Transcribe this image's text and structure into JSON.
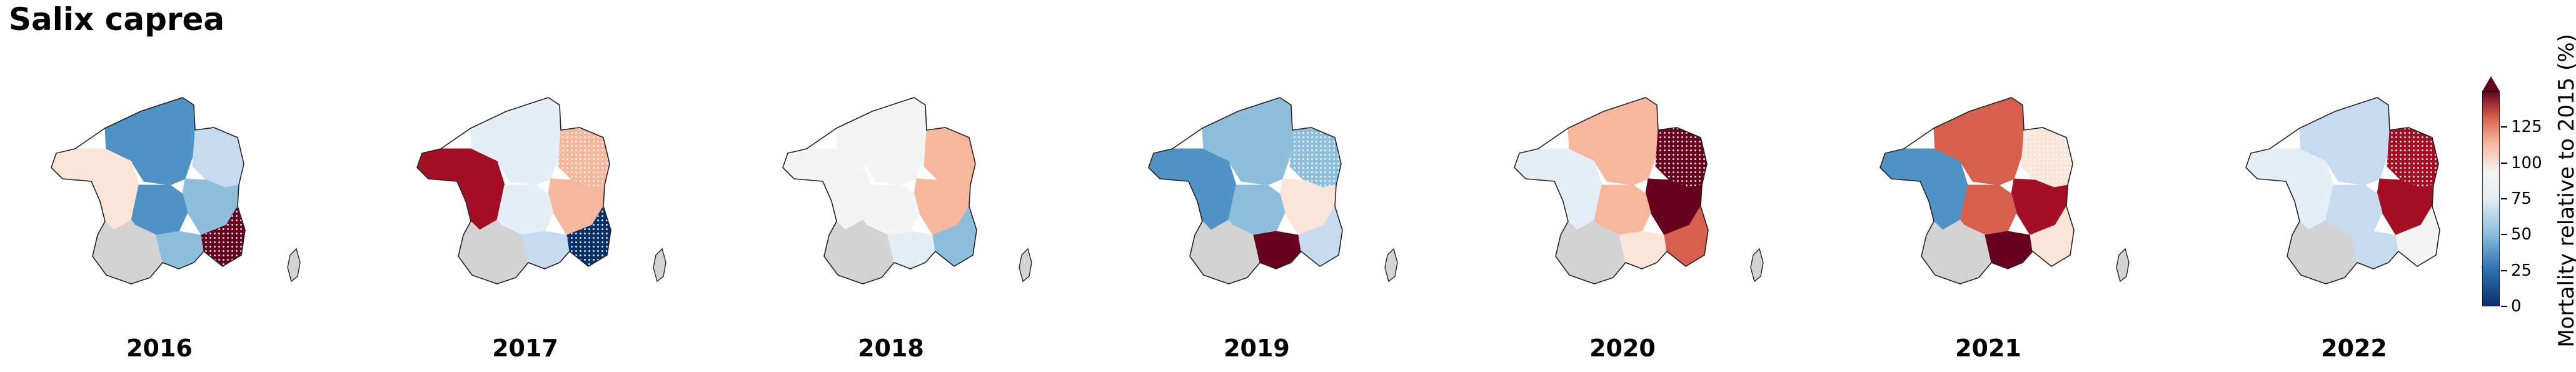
{
  "title": "Salix caprea",
  "colors": {
    "dark_blue": "#08306b",
    "blue": "#4f93c4",
    "mid_blue": "#8dbfdd",
    "light_blue": "#c6dbef",
    "pale_blue": "#e3eef6",
    "near_white": "#f4f4f4",
    "pale_red": "#fbe5d8",
    "light_red": "#f6b79c",
    "red": "#d6604d",
    "dark_red": "#a50f26",
    "darkest_red": "#67001f",
    "no_data": "#d3d3d3"
  },
  "colorbar": {
    "label": "Mortality relative to 2015 (%)",
    "ticks": [
      "0",
      "25",
      "50",
      "75",
      "100",
      "125"
    ],
    "range": [
      0,
      150
    ],
    "extend": "max"
  },
  "panels": [
    {
      "year": "2016",
      "regions": {
        "nw": "pale_red",
        "n": "blue",
        "ne": "light_blue",
        "e": "mid_blue",
        "w": "pale_red",
        "c": "blue",
        "sw": "no_data",
        "s": "mid_blue",
        "se": "darkest_red",
        "cor": "no_data"
      },
      "hatched": [
        "se"
      ]
    },
    {
      "year": "2017",
      "regions": {
        "nw": "dark_red",
        "n": "pale_blue",
        "ne": "light_red",
        "e": "light_red",
        "w": "dark_red",
        "c": "pale_blue",
        "sw": "no_data",
        "s": "light_blue",
        "se": "dark_blue",
        "cor": "no_data"
      },
      "hatched": [
        "se",
        "ne"
      ]
    },
    {
      "year": "2018",
      "regions": {
        "nw": "near_white",
        "n": "near_white",
        "ne": "light_red",
        "e": "light_red",
        "w": "near_white",
        "c": "near_white",
        "sw": "no_data",
        "s": "pale_blue",
        "se": "mid_blue",
        "cor": "no_data"
      },
      "hatched": []
    },
    {
      "year": "2019",
      "regions": {
        "nw": "blue",
        "n": "mid_blue",
        "ne": "mid_blue",
        "e": "pale_red",
        "w": "blue",
        "c": "mid_blue",
        "sw": "no_data",
        "s": "darkest_red",
        "se": "light_blue",
        "cor": "no_data"
      },
      "hatched": [
        "ne"
      ]
    },
    {
      "year": "2020",
      "regions": {
        "nw": "pale_blue",
        "n": "light_red",
        "ne": "darkest_red",
        "e": "darkest_red",
        "w": "pale_blue",
        "c": "light_red",
        "sw": "no_data",
        "s": "pale_red",
        "se": "red",
        "cor": "no_data"
      },
      "hatched": [
        "ne"
      ]
    },
    {
      "year": "2021",
      "regions": {
        "nw": "blue",
        "n": "red",
        "ne": "pale_red",
        "e": "dark_red",
        "w": "blue",
        "c": "red",
        "sw": "no_data",
        "s": "darkest_red",
        "se": "pale_red",
        "cor": "no_data"
      },
      "hatched": [
        "ne"
      ]
    },
    {
      "year": "2022",
      "regions": {
        "nw": "pale_blue",
        "n": "light_blue",
        "ne": "dark_red",
        "e": "dark_red",
        "w": "pale_blue",
        "c": "light_blue",
        "sw": "no_data",
        "s": "light_blue",
        "se": "near_white",
        "cor": "no_data"
      },
      "hatched": [
        "ne"
      ]
    }
  ]
}
